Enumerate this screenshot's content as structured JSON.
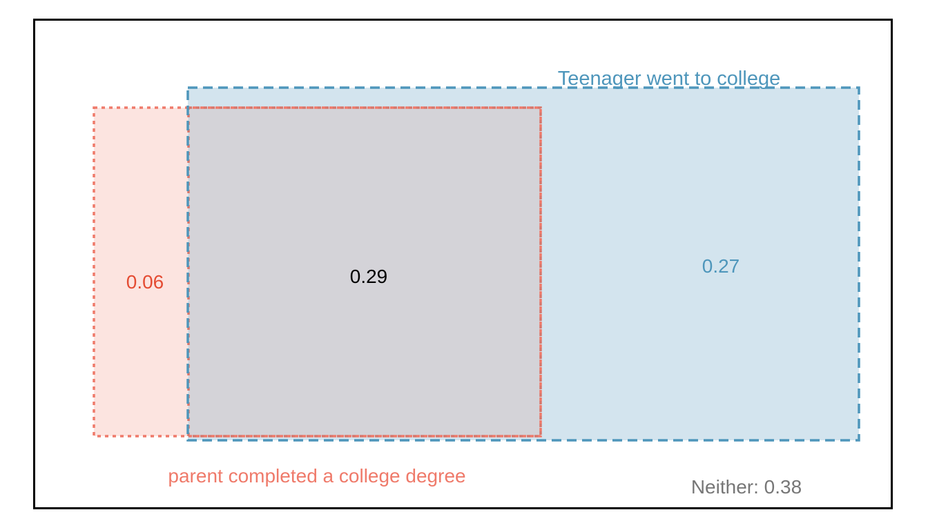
{
  "diagram": {
    "sets": {
      "teen": {
        "label": "Teenager went to college",
        "only_value": "0.27",
        "color": "#4e96bb",
        "fill": "#d3e4ee"
      },
      "parent": {
        "label": "parent completed a college degree",
        "only_value": "0.06",
        "color": "#ef7a6a",
        "fill": "#fce4e0"
      }
    },
    "overlap": {
      "value": "0.29",
      "color": "#000000",
      "fill": "#d4d3d8",
      "border": "#d7766b"
    },
    "neither": {
      "label": "Neither: 0.38",
      "color": "#777777"
    },
    "parent_only_label_color": "#e44c33",
    "frame_color": "#000000"
  }
}
